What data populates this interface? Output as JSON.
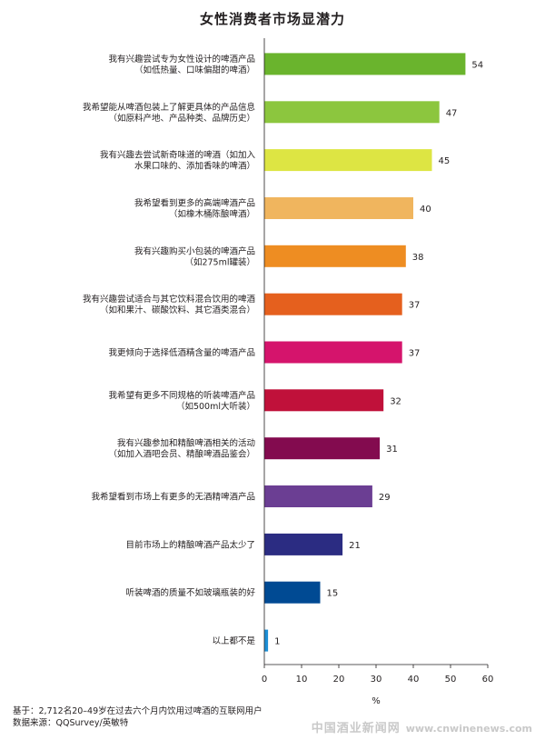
{
  "chart_data": {
    "type": "bar",
    "orientation": "horizontal",
    "title": "女性消费者市场显潜力",
    "xlabel": "%",
    "xlim": [
      0,
      60
    ],
    "xticks": [
      0,
      10,
      20,
      30,
      40,
      50,
      60
    ],
    "grid": false,
    "categories": [
      [
        "我有兴趣尝试专为女性设计的啤酒产品",
        "（如低热量、口味偏甜的啤酒）"
      ],
      [
        "我希望能从啤酒包装上了解更具体的产品信息",
        "（如原料产地、产品种类、品牌历史）"
      ],
      [
        "我有兴趣去尝试新奇味道的啤酒（如加入",
        "水果口味的、添加香味的啤酒）"
      ],
      [
        "我希望看到更多的高端啤酒产品",
        "（如橡木桶陈酿啤酒）"
      ],
      [
        "我有兴趣购买小包装的啤酒产品",
        "（如275ml罐装）"
      ],
      [
        "我有兴趣尝试适合与其它饮料混合饮用的啤酒",
        "（如和果汁、碳酸饮料、其它酒类混合）"
      ],
      [
        "我更倾向于选择低酒精含量的啤酒产品"
      ],
      [
        "我希望有更多不同规格的听装啤酒产品",
        "（如500ml大听装）"
      ],
      [
        "我有兴趣参加和精酿啤酒相关的活动",
        "（如加入酒吧会员、精酿啤酒品鉴会）"
      ],
      [
        "我希望看到市场上有更多的无酒精啤酒产品"
      ],
      [
        "目前市场上的精酿啤酒产品太少了"
      ],
      [
        "听装啤酒的质量不如玻璃瓶装的好"
      ],
      [
        "以上都不是"
      ]
    ],
    "values": [
      54,
      47,
      45,
      40,
      38,
      37,
      37,
      32,
      31,
      29,
      21,
      15,
      1
    ],
    "colors": [
      "#6ab42d",
      "#8cc63e",
      "#dde543",
      "#f0b55e",
      "#ee8d22",
      "#e5601e",
      "#d5146c",
      "#c0113a",
      "#830b4f",
      "#6b3e93",
      "#2b2c82",
      "#004a93",
      "#1d8fd5"
    ]
  },
  "footer": {
    "base": "基于：2,712名20–49岁在过去六个月内饮用过啤酒的互联网用户",
    "source": "数据来源：QQSurvey/英敏特"
  },
  "watermark": {
    "text": "中国酒业新闻网",
    "url": "www.cnwinenews.com"
  }
}
